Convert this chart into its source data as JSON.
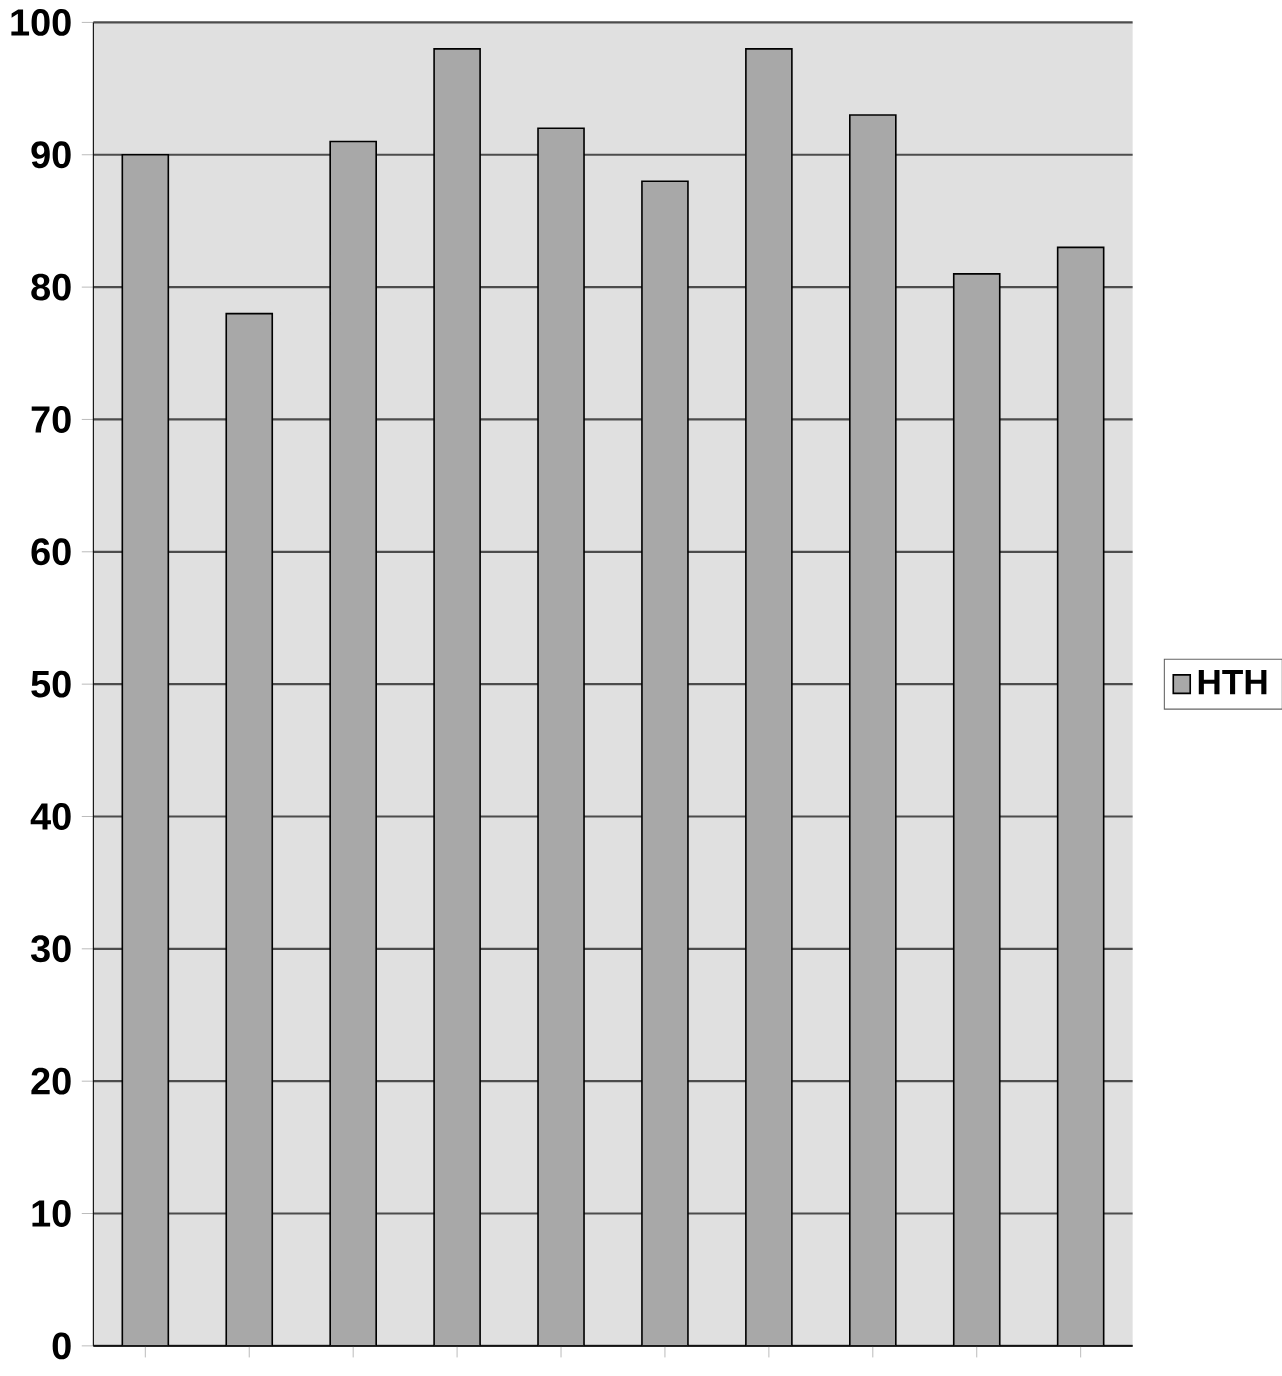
{
  "chart_data": {
    "type": "bar",
    "categories": [
      null,
      null,
      null,
      null,
      null,
      null,
      null,
      null,
      null,
      null
    ],
    "series": [
      {
        "name": "HTH",
        "color": "#a8a8a8",
        "values": [
          90,
          78,
          91,
          98,
          92,
          88,
          98,
          93,
          81,
          83
        ]
      }
    ],
    "ylim": [
      0,
      100
    ],
    "yticks": [
      0,
      10,
      20,
      30,
      40,
      50,
      60,
      70,
      80,
      90,
      100
    ],
    "grid": "y",
    "legend": "right"
  }
}
